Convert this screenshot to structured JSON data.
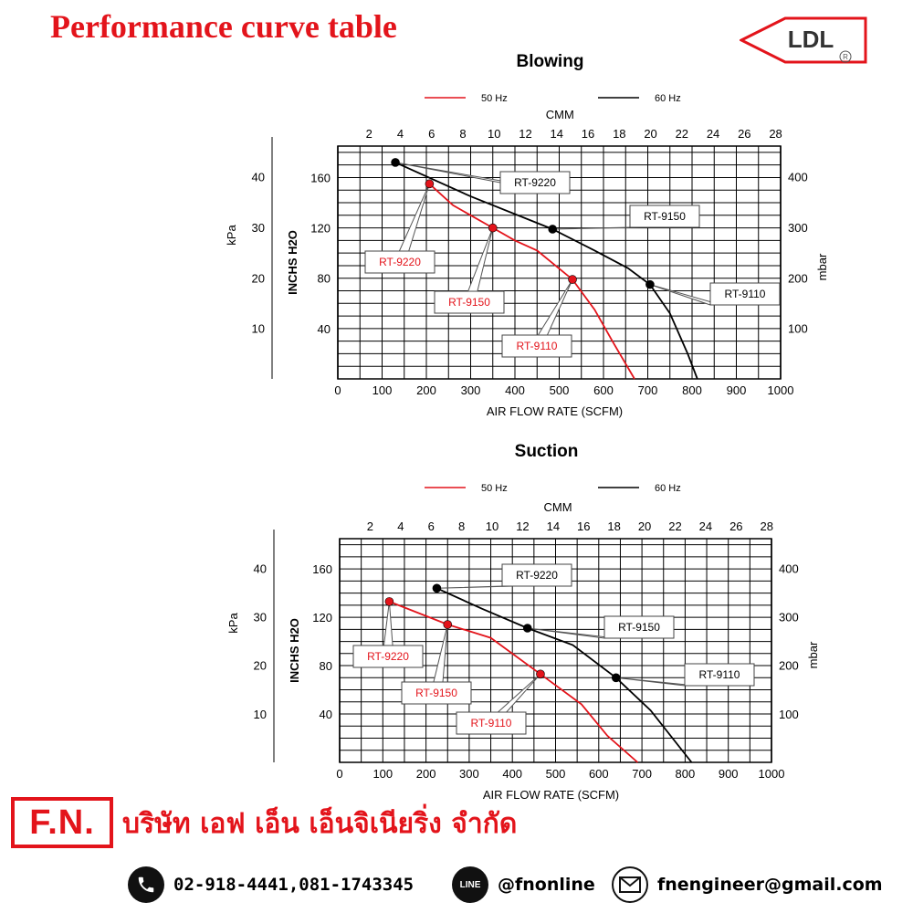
{
  "page_title": "Performance curve table",
  "brand": {
    "logo_text": "LDL",
    "registered_mark": "R"
  },
  "chart_data": [
    {
      "type": "line",
      "title": "Blowing",
      "xlabel": "AIR FLOW RATE (SCFM)",
      "x2label": "CMM",
      "ylabel_left_outer": "kPa",
      "ylabel_left_inner": "INCHS H2O",
      "ylabel_right": "mbar",
      "xlim": [
        0,
        1000
      ],
      "ylim": [
        0,
        185
      ],
      "x_ticks": [
        0,
        100,
        200,
        300,
        400,
        500,
        600,
        700,
        800,
        900,
        1000
      ],
      "x2_ticks": [
        2,
        4,
        6,
        8,
        10,
        12,
        14,
        16,
        18,
        20,
        22,
        24,
        26,
        28
      ],
      "y_ticks": [
        40,
        80,
        120,
        160
      ],
      "kpa_ticks": [
        10,
        20,
        30,
        40
      ],
      "mbar_ticks": [
        100,
        200,
        300,
        400
      ],
      "legend": [
        {
          "label": "50 Hz",
          "color": "#e3141b"
        },
        {
          "label": "60 Hz",
          "color": "#000000"
        }
      ],
      "legend_position": "top",
      "grid": true,
      "series": [
        {
          "name": "50 Hz",
          "color": "#e3141b",
          "x": [
            207,
            260,
            350,
            400,
            450,
            530,
            580,
            620,
            670
          ],
          "y": [
            155,
            138,
            120,
            110,
            102,
            79,
            55,
            30,
            0
          ]
        },
        {
          "name": "60 Hz",
          "color": "#000000",
          "x": [
            130,
            300,
            485,
            580,
            655,
            705,
            750,
            790,
            812
          ],
          "y": [
            172,
            145,
            119,
            102,
            88,
            75,
            52,
            20,
            0
          ]
        }
      ],
      "points": [
        {
          "label": "RT-9220",
          "x": 207,
          "y": 155,
          "color": "#e3141b"
        },
        {
          "label": "RT-9150",
          "x": 350,
          "y": 120,
          "color": "#e3141b"
        },
        {
          "label": "RT-9110",
          "x": 530,
          "y": 79,
          "color": "#e3141b"
        },
        {
          "label": "RT-9220",
          "x": 130,
          "y": 172,
          "color": "#000000"
        },
        {
          "label": "RT-9150",
          "x": 485,
          "y": 119,
          "color": "#000000"
        },
        {
          "label": "RT-9110",
          "x": 705,
          "y": 75,
          "color": "#000000"
        }
      ]
    },
    {
      "type": "line",
      "title": "Suction",
      "xlabel": "AIR FLOW RATE (SCFM)",
      "x2label": "CMM",
      "ylabel_left_outer": "kPa",
      "ylabel_left_inner": "INCHS H2O",
      "ylabel_right": "mbar",
      "xlim": [
        0,
        1000
      ],
      "ylim": [
        0,
        185
      ],
      "x_ticks": [
        0,
        100,
        200,
        300,
        400,
        500,
        600,
        700,
        800,
        900,
        1000
      ],
      "x2_ticks": [
        2,
        4,
        6,
        8,
        10,
        12,
        14,
        16,
        18,
        20,
        22,
        24,
        26,
        28
      ],
      "y_ticks": [
        40,
        80,
        120,
        160
      ],
      "kpa_ticks": [
        10,
        20,
        30,
        40
      ],
      "mbar_ticks": [
        100,
        200,
        300,
        400
      ],
      "legend": [
        {
          "label": "50 Hz",
          "color": "#e3141b"
        },
        {
          "label": "60 Hz",
          "color": "#000000"
        }
      ],
      "legend_position": "top",
      "grid": true,
      "series": [
        {
          "name": "50 Hz",
          "color": "#e3141b",
          "x": [
            115,
            250,
            350,
            465,
            560,
            620,
            690
          ],
          "y": [
            133,
            114,
            103,
            73,
            48,
            22,
            0
          ]
        },
        {
          "name": "60 Hz",
          "color": "#000000",
          "x": [
            225,
            330,
            435,
            540,
            640,
            720,
            815
          ],
          "y": [
            144,
            127,
            111,
            97,
            70,
            43,
            0
          ]
        }
      ],
      "points": [
        {
          "label": "RT-9220",
          "x": 115,
          "y": 133,
          "color": "#e3141b"
        },
        {
          "label": "RT-9150",
          "x": 250,
          "y": 114,
          "color": "#e3141b"
        },
        {
          "label": "RT-9110",
          "x": 465,
          "y": 73,
          "color": "#e3141b"
        },
        {
          "label": "RT-9220",
          "x": 225,
          "y": 144,
          "color": "#000000"
        },
        {
          "label": "RT-9150",
          "x": 435,
          "y": 111,
          "color": "#000000"
        },
        {
          "label": "RT-9110",
          "x": 640,
          "y": 70,
          "color": "#000000"
        }
      ]
    }
  ],
  "footer": {
    "company_logo": "F.N.",
    "company_name": "บริษัท เอฟ เอ็น เอ็นจิเนียริ่ง จำกัด",
    "phone": "02-918-4441,081-1743345",
    "line_icon_text": "LINE",
    "line_id": "@fnonline",
    "email": "fnengineer@gmail.com"
  },
  "colors": {
    "accent_red": "#e3141b",
    "black": "#000000"
  },
  "icons": [
    "phone-icon",
    "line-icon",
    "mail-icon"
  ]
}
